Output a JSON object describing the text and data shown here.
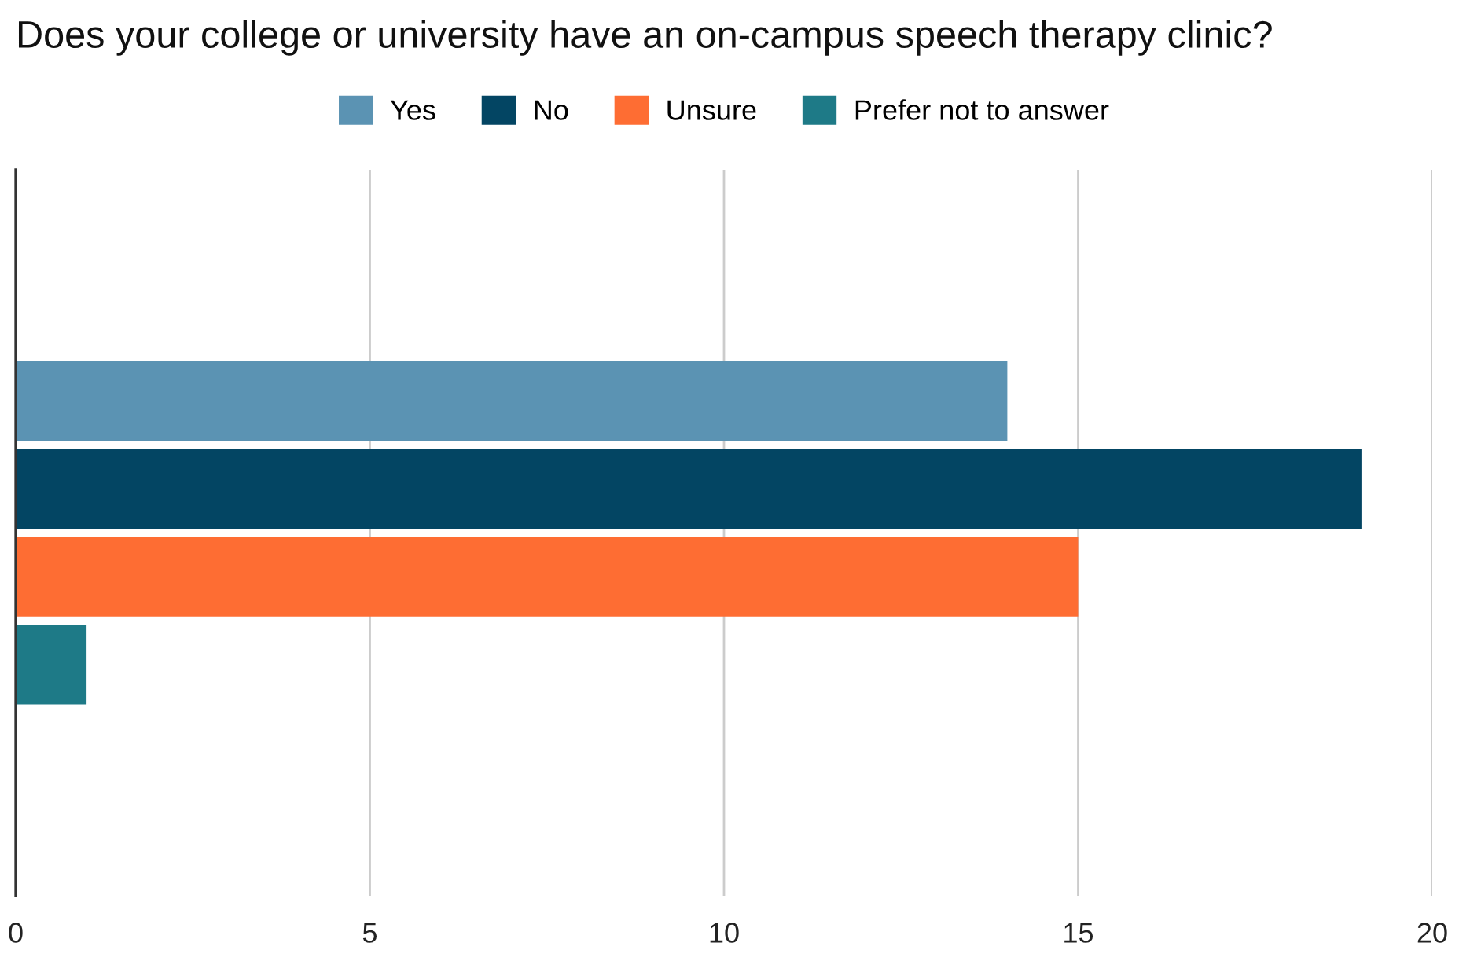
{
  "chart_data": {
    "type": "bar",
    "orientation": "horizontal",
    "title": "Does your college or university have an on-campus speech therapy clinic?",
    "categories": [
      null
    ],
    "series": [
      {
        "name": "Yes",
        "color": "#5b93b3",
        "values": [
          14
        ]
      },
      {
        "name": "No",
        "color": "#034563",
        "values": [
          19
        ]
      },
      {
        "name": "Unsure",
        "color": "#fe6d33",
        "values": [
          15
        ]
      },
      {
        "name": "Prefer not to answer",
        "color": "#1e7a87",
        "values": [
          1
        ]
      }
    ],
    "xlim": [
      0,
      20
    ],
    "xticks": [
      0,
      5,
      10,
      15,
      20
    ],
    "grid": "x",
    "legend": "top"
  }
}
